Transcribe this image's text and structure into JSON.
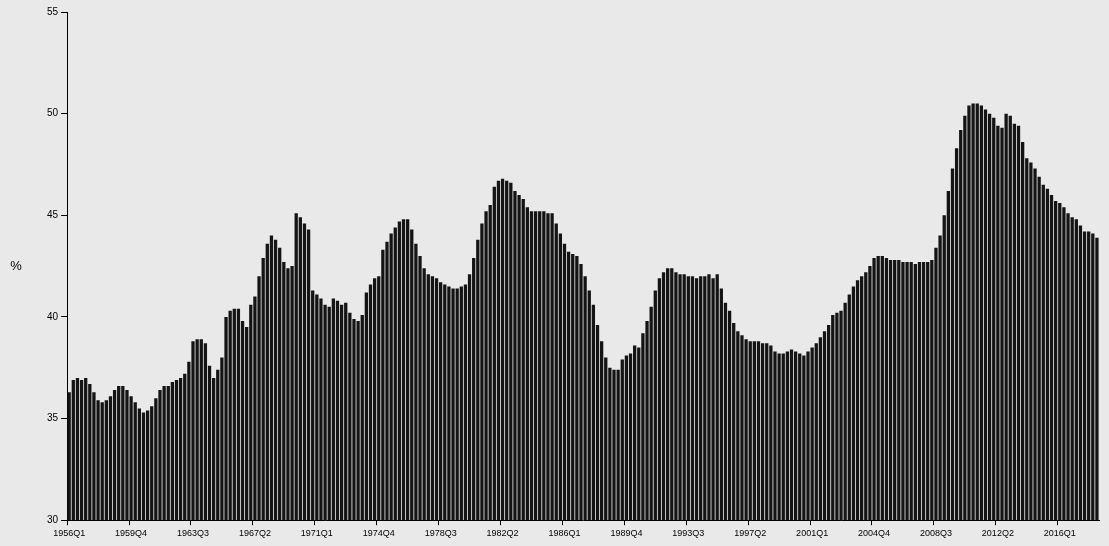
{
  "chart_data": {
    "type": "bar",
    "y_label": "%",
    "color": "#141414",
    "grid": false,
    "ylim": [
      30,
      55
    ],
    "yticks": [
      30,
      35,
      40,
      45,
      50,
      55
    ],
    "categories": [
      "1956Q1",
      null,
      null,
      null,
      null,
      null,
      null,
      null,
      null,
      null,
      null,
      null,
      null,
      null,
      null,
      "1959Q4",
      null,
      null,
      null,
      null,
      null,
      null,
      null,
      null,
      null,
      null,
      null,
      null,
      null,
      null,
      "1963Q3",
      null,
      null,
      null,
      null,
      null,
      null,
      null,
      null,
      null,
      null,
      null,
      null,
      null,
      null,
      "1967Q2",
      null,
      null,
      null,
      null,
      null,
      null,
      null,
      null,
      null,
      null,
      null,
      null,
      null,
      null,
      "1971Q1",
      null,
      null,
      null,
      null,
      null,
      null,
      null,
      null,
      null,
      null,
      null,
      null,
      null,
      null,
      "1974Q4",
      null,
      null,
      null,
      null,
      null,
      null,
      null,
      null,
      null,
      null,
      null,
      null,
      null,
      null,
      "1978Q3",
      null,
      null,
      null,
      null,
      null,
      null,
      null,
      null,
      null,
      null,
      null,
      null,
      null,
      null,
      "1982Q2",
      null,
      null,
      null,
      null,
      null,
      null,
      null,
      null,
      null,
      null,
      null,
      null,
      null,
      null,
      "1986Q1",
      null,
      null,
      null,
      null,
      null,
      null,
      null,
      null,
      null,
      null,
      null,
      null,
      null,
      null,
      "1989Q4",
      null,
      null,
      null,
      null,
      null,
      null,
      null,
      null,
      null,
      null,
      null,
      null,
      null,
      null,
      "1993Q3",
      null,
      null,
      null,
      null,
      null,
      null,
      null,
      null,
      null,
      null,
      null,
      null,
      null,
      null,
      "1997Q2",
      null,
      null,
      null,
      null,
      null,
      null,
      null,
      null,
      null,
      null,
      null,
      null,
      null,
      null,
      "2001Q1",
      null,
      null,
      null,
      null,
      null,
      null,
      null,
      null,
      null,
      null,
      null,
      null,
      null,
      null,
      "2004Q4",
      null,
      null,
      null,
      null,
      null,
      null,
      null,
      null,
      null,
      null,
      null,
      null,
      null,
      null,
      "2008Q3",
      null,
      null,
      null,
      null,
      null,
      null,
      null,
      null,
      null,
      null,
      null,
      null,
      null,
      null,
      "2012Q2",
      null,
      null,
      null,
      null,
      null,
      null,
      null,
      null,
      null,
      null,
      null,
      null,
      null,
      null,
      "2016Q1",
      null,
      null,
      null,
      null,
      null,
      null,
      null,
      null,
      null
    ],
    "values": [
      36.3,
      36.9,
      37.0,
      36.9,
      37.0,
      36.7,
      36.3,
      35.9,
      35.8,
      35.9,
      36.1,
      36.4,
      36.6,
      36.6,
      36.4,
      36.1,
      35.8,
      35.5,
      35.3,
      35.4,
      35.6,
      36.0,
      36.4,
      36.6,
      36.6,
      36.8,
      36.9,
      37.0,
      37.2,
      37.8,
      38.8,
      38.9,
      38.9,
      38.7,
      37.6,
      37.0,
      37.4,
      38.0,
      40.0,
      40.3,
      40.4,
      40.4,
      39.8,
      39.5,
      40.6,
      41.0,
      42.0,
      42.9,
      43.6,
      44.0,
      43.8,
      43.4,
      42.7,
      42.4,
      42.5,
      45.1,
      44.9,
      44.6,
      44.3,
      41.3,
      41.1,
      40.9,
      40.6,
      40.5,
      40.9,
      40.8,
      40.6,
      40.7,
      40.2,
      39.9,
      39.8,
      40.1,
      41.2,
      41.6,
      41.9,
      42.0,
      43.3,
      43.7,
      44.1,
      44.4,
      44.7,
      44.8,
      44.8,
      44.3,
      43.6,
      43.0,
      42.4,
      42.1,
      42.0,
      41.9,
      41.7,
      41.6,
      41.5,
      41.4,
      41.4,
      41.5,
      41.6,
      42.1,
      42.9,
      43.8,
      44.6,
      45.2,
      45.5,
      46.4,
      46.7,
      46.8,
      46.7,
      46.6,
      46.2,
      46.0,
      45.8,
      45.4,
      45.2,
      45.2,
      45.2,
      45.2,
      45.1,
      45.1,
      44.6,
      44.1,
      43.6,
      43.2,
      43.1,
      43.0,
      42.6,
      42.0,
      41.3,
      40.6,
      39.6,
      38.8,
      38.0,
      37.5,
      37.4,
      37.4,
      37.9,
      38.1,
      38.2,
      38.6,
      38.5,
      39.2,
      39.8,
      40.5,
      41.3,
      41.9,
      42.2,
      42.4,
      42.4,
      42.2,
      42.1,
      42.1,
      42.0,
      42.0,
      41.9,
      42.0,
      42.0,
      42.1,
      41.9,
      42.1,
      41.4,
      40.7,
      40.3,
      39.7,
      39.3,
      39.1,
      38.9,
      38.8,
      38.8,
      38.8,
      38.7,
      38.7,
      38.6,
      38.3,
      38.2,
      38.2,
      38.3,
      38.4,
      38.3,
      38.2,
      38.1,
      38.3,
      38.5,
      38.7,
      39.0,
      39.3,
      39.6,
      40.1,
      40.2,
      40.3,
      40.7,
      41.1,
      41.5,
      41.8,
      42.0,
      42.2,
      42.5,
      42.9,
      43.0,
      43.0,
      42.9,
      42.8,
      42.8,
      42.8,
      42.7,
      42.7,
      42.7,
      42.6,
      42.7,
      42.7,
      42.7,
      42.8,
      43.4,
      44.0,
      45.0,
      46.2,
      47.3,
      48.3,
      49.2,
      49.9,
      50.4,
      50.5,
      50.5,
      50.4,
      50.2,
      50.0,
      49.8,
      49.4,
      49.3,
      50.0,
      49.9,
      49.5,
      49.4,
      48.6,
      47.8,
      47.6,
      47.3,
      46.9,
      46.5,
      46.3,
      46.0,
      45.7,
      45.6,
      45.4,
      45.1,
      44.9,
      44.8,
      44.5,
      44.2,
      44.2,
      44.1,
      43.9
    ]
  }
}
